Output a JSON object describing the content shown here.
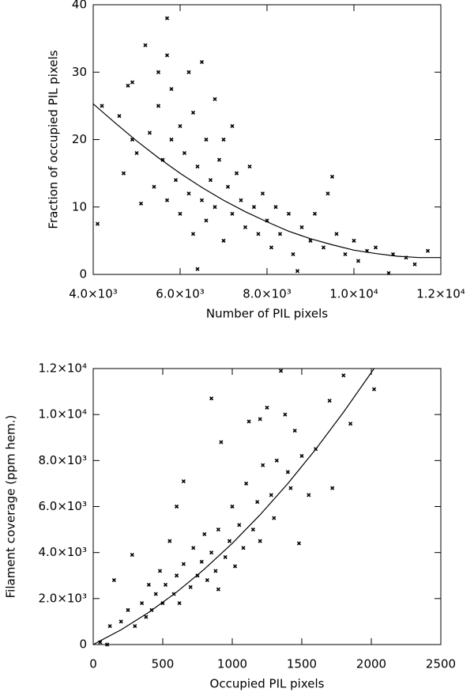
{
  "chart_data": [
    {
      "type": "scatter",
      "x_label": "Number of PIL pixels",
      "y_label": "Fraction of occupied PIL pixels",
      "color": "#000000",
      "xlim": [
        4000,
        12000
      ],
      "ylim": [
        0,
        40
      ],
      "xticks": [
        {
          "value": 4000,
          "label": "4.0×10³"
        },
        {
          "value": 6000,
          "label": "6.0×10³"
        },
        {
          "value": 8000,
          "label": "8.0×10³"
        },
        {
          "value": 10000,
          "label": "1.0×10⁴"
        },
        {
          "value": 12000,
          "label": "1.2×10⁴"
        }
      ],
      "yticks": [
        0,
        10,
        20,
        30,
        40
      ],
      "x": [
        4100,
        4200,
        4600,
        4700,
        4800,
        4900,
        4900,
        5000,
        5100,
        5200,
        5300,
        5400,
        5500,
        5500,
        5600,
        5700,
        5700,
        5700,
        5800,
        5800,
        5900,
        6000,
        6000,
        6100,
        6200,
        6200,
        6300,
        6300,
        6400,
        6500,
        6500,
        6600,
        6600,
        6700,
        6800,
        6800,
        6900,
        7000,
        7100,
        7200,
        7200,
        7300,
        7400,
        7500,
        7600,
        7700,
        7800,
        7900,
        8000,
        8100,
        8200,
        8300,
        8500,
        8600,
        8800,
        9000,
        9100,
        9300,
        9400,
        9500,
        9600,
        9800,
        10000,
        10100,
        10300,
        10500,
        10800,
        10900,
        11200,
        11400,
        11700,
        7000,
        6400,
        8700
      ],
      "values": [
        7.5,
        25,
        23.5,
        15,
        28,
        28.5,
        20,
        18,
        10.5,
        34,
        21,
        13,
        25,
        30,
        17,
        38,
        32.5,
        11,
        27.5,
        20,
        14,
        22,
        9,
        18,
        30,
        12,
        24,
        6,
        16,
        31.5,
        11,
        20,
        8,
        14,
        26,
        10,
        17,
        5,
        13,
        22,
        9,
        15,
        11,
        7,
        16,
        10,
        6,
        12,
        8,
        4,
        10,
        6,
        9,
        3,
        7,
        5,
        9,
        4,
        12,
        14.5,
        6,
        3,
        5,
        2,
        3.5,
        4,
        0.2,
        3,
        2.5,
        1.5,
        3.5,
        20,
        0.8,
        0.5
      ],
      "fit": {
        "x": [
          4000,
          4500,
          5000,
          5500,
          6000,
          6500,
          7000,
          7500,
          8000,
          8500,
          9000,
          9500,
          10000,
          10500,
          11000,
          11500,
          12000
        ],
        "values": [
          25.3,
          22.5,
          19.8,
          17.3,
          15.0,
          12.9,
          11.0,
          9.3,
          7.8,
          6.4,
          5.3,
          4.4,
          3.6,
          3.1,
          2.7,
          2.5,
          2.5
        ]
      }
    },
    {
      "type": "scatter",
      "x_label": "Occupied PIL pixels",
      "y_label": "Filament coverage (ppm hem.)",
      "color": "#000000",
      "xlim": [
        0,
        2500
      ],
      "ylim": [
        0,
        12000
      ],
      "xticks": [
        0,
        500,
        1000,
        1500,
        2000,
        2500
      ],
      "yticks": [
        0,
        {
          "value": 2000,
          "label": "2.0×10³"
        },
        {
          "value": 4000,
          "label": "4.0×10³"
        },
        {
          "value": 6000,
          "label": "6.0×10³"
        },
        {
          "value": 8000,
          "label": "8.0×10³"
        },
        {
          "value": 10000,
          "label": "1.0×10⁴"
        },
        {
          "value": 12000,
          "label": "1.2×10⁴"
        }
      ],
      "x": [
        50,
        100,
        120,
        150,
        200,
        250,
        280,
        300,
        350,
        380,
        400,
        420,
        450,
        480,
        500,
        520,
        550,
        580,
        600,
        620,
        650,
        650,
        700,
        720,
        750,
        780,
        800,
        820,
        850,
        850,
        880,
        900,
        920,
        950,
        980,
        1000,
        1020,
        1050,
        1080,
        1100,
        1120,
        1150,
        1180,
        1200,
        1220,
        1250,
        1280,
        1300,
        1320,
        1350,
        1380,
        1400,
        1420,
        1450,
        1480,
        1500,
        1550,
        1600,
        1700,
        1720,
        1800,
        1850,
        2020,
        600,
        900,
        1200
      ],
      "values": [
        100,
        0,
        800,
        2800,
        1000,
        1500,
        3900,
        800,
        1800,
        1200,
        2600,
        1500,
        2200,
        3200,
        1800,
        2600,
        4500,
        2200,
        3000,
        1800,
        7100,
        3500,
        2500,
        4200,
        3000,
        3600,
        4800,
        2800,
        10700,
        4000,
        3200,
        5000,
        8800,
        3800,
        4500,
        6000,
        3400,
        5200,
        4200,
        7000,
        9700,
        5000,
        6200,
        4500,
        7800,
        10300,
        6500,
        5500,
        8000,
        11900,
        10000,
        7500,
        6800,
        9300,
        4400,
        8200,
        6500,
        8500,
        10600,
        6800,
        11700,
        9600,
        11100,
        6000,
        2400,
        9800
      ],
      "fit": {
        "x": [
          0,
          200,
          400,
          600,
          800,
          1000,
          1200,
          1400,
          1600,
          1800,
          2020
        ],
        "values": [
          0,
          640,
          1400,
          2280,
          3280,
          4400,
          5640,
          7000,
          8490,
          10100,
          12000
        ]
      }
    }
  ]
}
